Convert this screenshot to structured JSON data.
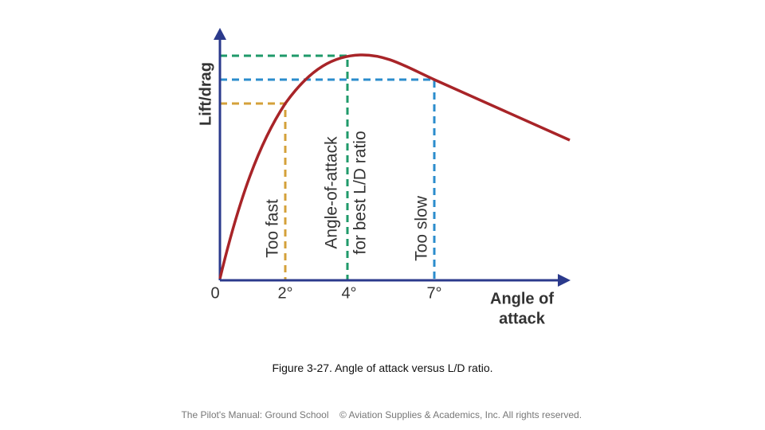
{
  "axes": {
    "y_label": "Lift/drag",
    "x_label_lines": [
      "Angle of",
      "attack"
    ],
    "x_ticks": [
      "0",
      "2°",
      "4°",
      "7°"
    ]
  },
  "annotations": [
    "Too fast",
    "Angle-of-attack",
    "for best L/D ratio",
    "Too slow"
  ],
  "caption": {
    "figure": "Figure 3-27.",
    "text": "Angle of attack versus L/D ratio."
  },
  "footer": {
    "left": "The Pilot's Manual: Ground School",
    "right": "© Aviation Supplies & Academics, Inc. All rights reserved."
  }
}
